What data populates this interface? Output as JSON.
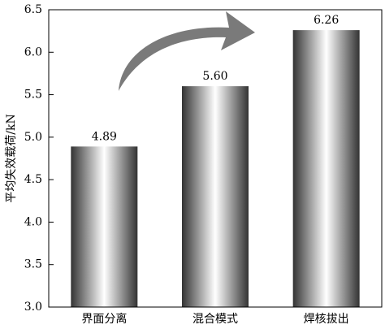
{
  "chart_data": {
    "type": "bar",
    "y_label": "平均失效载荷/kN",
    "categories": [
      "界面分离",
      "混合模式",
      "焊核拔出"
    ],
    "values": [
      4.89,
      5.6,
      6.26
    ],
    "value_labels": [
      "4.89",
      "5.60",
      "6.26"
    ],
    "color": "#333333",
    "ylim": [
      3.0,
      6.5
    ],
    "yticks": [
      {
        "value": 3,
        "label": "3.0"
      },
      {
        "value": 3.5,
        "label": "3.5"
      },
      {
        "value": 4,
        "label": "4.0"
      },
      {
        "value": 4.5,
        "label": "4.5"
      },
      {
        "value": 5,
        "label": "5.0"
      },
      {
        "value": 5.5,
        "label": "5.5"
      },
      {
        "value": 6,
        "label": "6.0"
      },
      {
        "value": 6.5,
        "label": "6.5"
      }
    ]
  }
}
